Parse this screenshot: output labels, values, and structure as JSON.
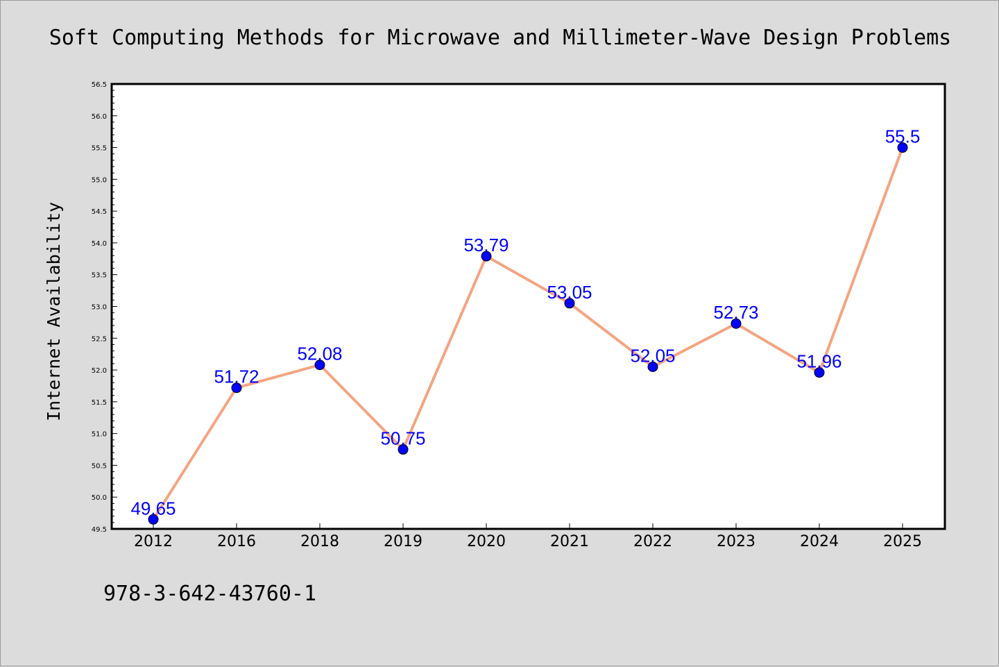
{
  "chart_data": {
    "type": "line",
    "title": "Soft Computing Methods for Microwave and Millimeter-Wave Design Problems",
    "xlabel": "",
    "ylabel": "Internet Availability",
    "categories": [
      "2012",
      "2016",
      "2018",
      "2019",
      "2020",
      "2021",
      "2022",
      "2023",
      "2024",
      "2025"
    ],
    "series": [
      {
        "values": [
          49.65,
          51.72,
          52.08,
          50.75,
          53.79,
          53.05,
          52.05,
          52.73,
          51.96,
          55.5
        ],
        "data_labels": [
          "49.65",
          "51.72",
          "52.08",
          "50.75",
          "53.79",
          "53.05",
          "52.05",
          "52.73",
          "51.96",
          "55.5"
        ],
        "line_color": "#f4a582",
        "marker_color": "#0000ff",
        "label_color": "#0000ff"
      }
    ],
    "ylim": [
      49.5,
      56.5
    ],
    "yticks": [
      "49.5",
      "50.0",
      "50.5",
      "51.0",
      "51.5",
      "52.0",
      "52.5",
      "53.0",
      "53.5",
      "54.0",
      "54.5",
      "55.0",
      "55.5",
      "56.0",
      "56.5"
    ],
    "grid": false,
    "legend": "none"
  },
  "footer": {
    "isbn": "978-3-642-43760-1"
  }
}
